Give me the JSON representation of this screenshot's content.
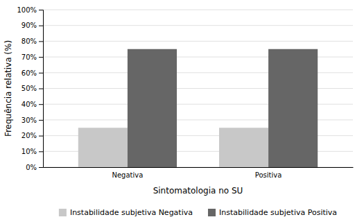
{
  "chart_data": {
    "type": "bar",
    "xlabel": "Sintomatologia no SU",
    "ylabel": "Frequência relativa (%)",
    "categories": [
      "Negativa",
      "Positiva"
    ],
    "series": [
      {
        "name": "Instabilidade subjetiva Negativa",
        "color": "#c8c8c8",
        "values": [
          25,
          25
        ]
      },
      {
        "name": "Instabilidade subjetiva Positiva",
        "color": "#666666",
        "values": [
          75,
          75
        ]
      }
    ],
    "ylim": [
      0,
      100
    ],
    "yticks": [
      {
        "value": 0,
        "label": "0%"
      },
      {
        "value": 10,
        "label": "10%"
      },
      {
        "value": 20,
        "label": "20%"
      },
      {
        "value": 30,
        "label": "30%"
      },
      {
        "value": 40,
        "label": "40%"
      },
      {
        "value": 50,
        "label": "50%"
      },
      {
        "value": 60,
        "label": "60%"
      },
      {
        "value": 70,
        "label": "70%"
      },
      {
        "value": 80,
        "label": "80%"
      },
      {
        "value": 90,
        "label": "90%"
      },
      {
        "value": 100,
        "label": "100%"
      }
    ],
    "grid": true,
    "legend": "bottom"
  }
}
